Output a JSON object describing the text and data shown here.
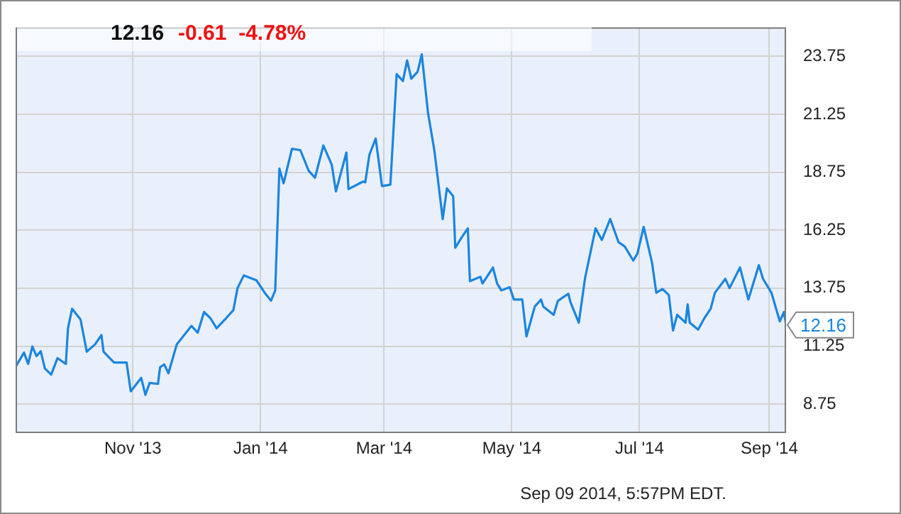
{
  "chart_data": {
    "type": "line",
    "title": "12.16",
    "subtitle": "-0.61  -4.78%",
    "annotations": [
      "Sep 09 2014, 5:57PM EDT.",
      {
        "text": "12.16",
        "x": "2014-09-09",
        "y": 12.16
      }
    ],
    "x": [
      "2013-09-06",
      "2013-09-10",
      "2013-09-12",
      "2013-09-14",
      "2013-09-16",
      "2013-09-18",
      "2013-09-20",
      "2013-09-23",
      "2013-09-26",
      "2013-09-30",
      "2013-10-01",
      "2013-10-03",
      "2013-10-07",
      "2013-10-10",
      "2013-10-14",
      "2013-10-17",
      "2013-10-18",
      "2013-10-23",
      "2013-10-29",
      "2013-10-31",
      "2013-11-05",
      "2013-11-07",
      "2013-11-09",
      "2013-11-13",
      "2013-11-14",
      "2013-11-16",
      "2013-11-18",
      "2013-11-22",
      "2013-11-29",
      "2013-12-02",
      "2013-12-05",
      "2013-12-08",
      "2013-12-11",
      "2013-12-15",
      "2013-12-19",
      "2013-12-21",
      "2013-12-24",
      "2013-12-30",
      "2014-01-03",
      "2014-01-06",
      "2014-01-08",
      "2014-01-10",
      "2014-01-12",
      "2014-01-16",
      "2014-01-20",
      "2014-01-24",
      "2014-01-27",
      "2014-01-31",
      "2014-02-04",
      "2014-02-06",
      "2014-02-11",
      "2014-02-12",
      "2014-02-19",
      "2014-02-20",
      "2014-02-22",
      "2014-02-25",
      "2014-02-28",
      "2014-03-04",
      "2014-03-07",
      "2014-03-10",
      "2014-03-12",
      "2014-03-14",
      "2014-03-17",
      "2014-03-19",
      "2014-03-22",
      "2014-03-25",
      "2014-03-29",
      "2014-03-31",
      "2014-04-03",
      "2014-04-04",
      "2014-04-07",
      "2014-04-10",
      "2014-04-11",
      "2014-04-16",
      "2014-04-17",
      "2014-04-22",
      "2014-04-24",
      "2014-04-26",
      "2014-04-30",
      "2014-05-02",
      "2014-05-06",
      "2014-05-08",
      "2014-05-12",
      "2014-05-15",
      "2014-05-16",
      "2014-05-21",
      "2014-05-23",
      "2014-05-28",
      "2014-05-29",
      "2014-06-02",
      "2014-06-05",
      "2014-06-10",
      "2014-06-13",
      "2014-06-17",
      "2014-06-21",
      "2014-06-24",
      "2014-06-28",
      "2014-06-30",
      "2014-07-03",
      "2014-07-07",
      "2014-07-09",
      "2014-07-12",
      "2014-07-15",
      "2014-07-17",
      "2014-07-19",
      "2014-07-23",
      "2014-07-24",
      "2014-07-25",
      "2014-07-29",
      "2014-08-01",
      "2014-08-04",
      "2014-08-06",
      "2014-08-11",
      "2014-08-13",
      "2014-08-18",
      "2014-08-22",
      "2014-08-27",
      "2014-08-29",
      "2014-09-02",
      "2014-09-06",
      "2014-09-08",
      "2014-09-09"
    ],
    "series": [
      {
        "color": "#1a85e0",
        "values": [
          10.36,
          10.97,
          10.48,
          11.23,
          10.82,
          11.03,
          10.28,
          10.02,
          10.73,
          10.48,
          12.01,
          12.86,
          12.4,
          11.01,
          11.33,
          11.73,
          11.01,
          10.54,
          10.54,
          9.3,
          9.88,
          9.15,
          9.66,
          9.62,
          10.34,
          10.46,
          10.08,
          11.33,
          12.12,
          11.83,
          12.72,
          12.46,
          12.02,
          12.4,
          12.8,
          13.75,
          14.3,
          14.09,
          13.55,
          13.21,
          13.65,
          18.91,
          18.27,
          19.76,
          19.7,
          18.81,
          18.51,
          19.9,
          19.07,
          17.92,
          19.6,
          18.02,
          18.35,
          18.31,
          19.51,
          20.2,
          18.15,
          18.21,
          22.98,
          22.68,
          23.57,
          22.78,
          23.08,
          23.83,
          21.29,
          19.7,
          16.73,
          18.05,
          17.72,
          15.49,
          15.93,
          16.33,
          14.05,
          14.24,
          13.95,
          14.64,
          13.95,
          13.65,
          13.79,
          13.26,
          13.26,
          11.67,
          12.96,
          13.26,
          12.96,
          12.6,
          13.2,
          13.51,
          13.15,
          12.26,
          14.19,
          16.33,
          15.83,
          16.73,
          15.73,
          15.54,
          14.94,
          15.24,
          16.39,
          14.84,
          13.55,
          13.71,
          13.45,
          11.92,
          12.6,
          12.26,
          13.05,
          12.26,
          11.96,
          12.46,
          12.86,
          13.55,
          14.15,
          13.75,
          14.64,
          13.26,
          14.74,
          14.15,
          13.55,
          12.32,
          12.72,
          12.16
        ]
      }
    ],
    "xlim": [
      "2013-09-06",
      "2014-09-09"
    ],
    "xticks": [
      {
        "value": "2013-11-01",
        "label": "Nov '13"
      },
      {
        "value": "2014-01-01",
        "label": "Jan '14"
      },
      {
        "value": "2014-03-01",
        "label": "Mar '14"
      },
      {
        "value": "2014-05-01",
        "label": "May '14"
      },
      {
        "value": "2014-07-01",
        "label": "Jul '14"
      },
      {
        "value": "2014-09-01",
        "label": "Sep '14"
      }
    ],
    "ylim": [
      7.5,
      25
    ],
    "yticks": [
      8.75,
      11.25,
      13.75,
      16.25,
      18.75,
      21.25,
      23.75
    ],
    "grid": true,
    "legend": false,
    "marker": "none",
    "line_style": "solid"
  }
}
